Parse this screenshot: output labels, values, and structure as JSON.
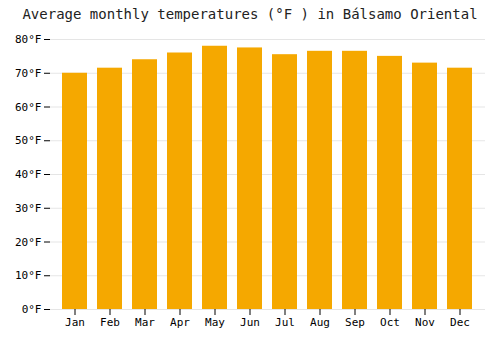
{
  "chart_data": {
    "type": "bar",
    "title": "Average monthly temperatures (°F ) in Bálsamo Oriental",
    "categories": [
      "Jan",
      "Feb",
      "Mar",
      "Apr",
      "May",
      "Jun",
      "Jul",
      "Aug",
      "Sep",
      "Oct",
      "Nov",
      "Dec"
    ],
    "values": [
      70.0,
      71.5,
      74.0,
      76.0,
      78.0,
      77.5,
      75.5,
      76.5,
      76.5,
      75.0,
      73.0,
      71.5
    ],
    "color": "#F5A800",
    "ylim": [
      0,
      80
    ],
    "yticks": [
      {
        "value": 0,
        "label": "0°F"
      },
      {
        "value": 10,
        "label": "10°F"
      },
      {
        "value": 20,
        "label": "20°F"
      },
      {
        "value": 30,
        "label": "30°F"
      },
      {
        "value": 40,
        "label": "40°F"
      },
      {
        "value": 50,
        "label": "50°F"
      },
      {
        "value": 60,
        "label": "60°F"
      },
      {
        "value": 70,
        "label": "70°F"
      },
      {
        "value": 80,
        "label": "80°F"
      }
    ],
    "grid": true
  }
}
